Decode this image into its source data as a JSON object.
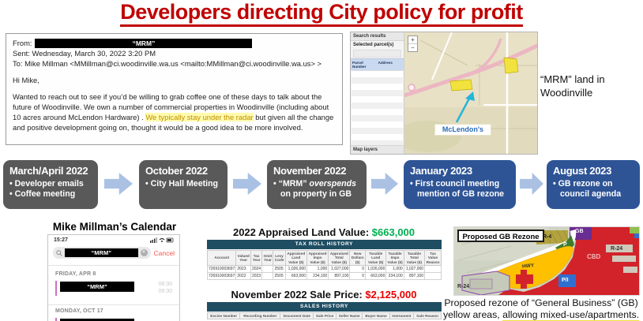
{
  "title": "Developers directing City policy for profit",
  "email": {
    "from_label": "From:",
    "from_redacted": "“MRM”",
    "sent": "Sent: Wednesday, March 30, 2022 3:20 PM",
    "to": "To: Mike Millman <MMillman@ci.woodinville.wa.us <mailto:MMillman@ci.woodinville.wa.us> >",
    "greeting": "Hi Mike,",
    "body_1": "Wanted to reach out to see if you’d be willing to grab coffee one of these days to talk about the future of Woodinville. We own a number of commercial properties in Woodinville (including about 10 acres around McLendon Hardware) . ",
    "body_highlight": "We typically stay under the radar",
    "body_2": " but given all the change and positive development going on, thought it would be a good idea to be more involved."
  },
  "parcel_map": {
    "sidebar": {
      "search_results": "Search results",
      "selected_parcels": "Selected parcel(s)",
      "col_parcel": "Parcel Number",
      "col_address": "Address",
      "map_layers": "Map layers"
    },
    "zoom_in": "+",
    "zoom_out": "−",
    "mclendons_label": "McLendon's"
  },
  "mrm_caption": {
    "line1": "“MRM” land in",
    "line2": "Woodinville"
  },
  "timeline": {
    "boxes": [
      {
        "title": "March/April 2022",
        "bullet1": "Developer emails",
        "bullet2": "Coffee meeting"
      },
      {
        "title": "October 2022",
        "bullet1": "City Hall Meeting"
      },
      {
        "title": "November 2022",
        "bullet_pre": "“MRM” ",
        "bullet_italic": "overspends",
        "bullet_post": " on property in GB"
      },
      {
        "title": "January 2023",
        "bullet1": "First council meeting mention of GB rezone"
      },
      {
        "title": "August 2023",
        "bullet1": "GB rezone on council agenda"
      }
    ]
  },
  "calendar": {
    "heading": "Mike Millman’s Calendar",
    "status_time": "15:27",
    "search_redacted": "“MRM”",
    "cancel": "Cancel",
    "day1": "FRIDAY, APR 8",
    "event1_redacted": "“MRM”",
    "event1_start": "08:30",
    "event1_end": "09:30",
    "day2": "MONDAY, OCT 17"
  },
  "assessor": {
    "appraised_label": "2022 Appraised Land Value: ",
    "appraised_value": "$663,000",
    "tax_roll_title": "TAX ROLL HISTORY",
    "tax_headers": [
      "Account",
      "Valued Year",
      "Tax Year",
      "Omit Year",
      "Levy Code",
      "Appraised Land Value ($)",
      "Appraised Imps Value ($)",
      "Appraised Total Value ($)",
      "New Dollars ($)",
      "Taxable Land Value ($)",
      "Taxable Imps Value ($)",
      "Taxable Total Value ($)",
      "Tax Value Reason"
    ],
    "tax_rows": [
      [
        "726910003697",
        "2023",
        "2024",
        "",
        "2505",
        "1,026,000",
        "1,000",
        "1,027,000",
        "0",
        "1,026,000",
        "1,000",
        "1,027,000",
        ""
      ],
      [
        "726910003697",
        "2022",
        "2023",
        "",
        "2505",
        "663,000",
        "234,100",
        "897,100",
        "0",
        "663,000",
        "234,100",
        "897,100",
        ""
      ]
    ],
    "sale_label": "November 2022 Sale Price: ",
    "sale_value": "$2,125,000",
    "sales_title": "SALES HISTORY",
    "sales_headers": [
      "Excise Number",
      "Recording Number",
      "Document Date",
      "Sale Price",
      "Seller Name",
      "Buyer Name",
      "Instrument",
      "Sale Reason"
    ]
  },
  "rezone": {
    "map_label": "Proposed GB Rezone",
    "labels": {
      "gb": "GB",
      "r4": "R-4",
      "p": "P",
      "cbd": "CBD",
      "r24_right": "R-24",
      "pi": "P/I",
      "hwy": "HWY",
      "r24_left": "R-24"
    },
    "caption_line1": "Proposed rezone of “General Business” (GB)",
    "caption_line2_pre": "yellow areas, ",
    "caption_line2_highlight": "allowing mixed-use/apartments."
  },
  "colors": {
    "title_red": "#c00000",
    "timeline_gray": "#595959",
    "timeline_blue": "#2e5496",
    "arrow_blue": "#aac1e4",
    "appraised_green": "#00b050",
    "sale_red": "#e90000",
    "table_bar_teal": "#1f4e63",
    "rezone_yellow": "#ffc000",
    "rezone_red": "#d2232a"
  }
}
